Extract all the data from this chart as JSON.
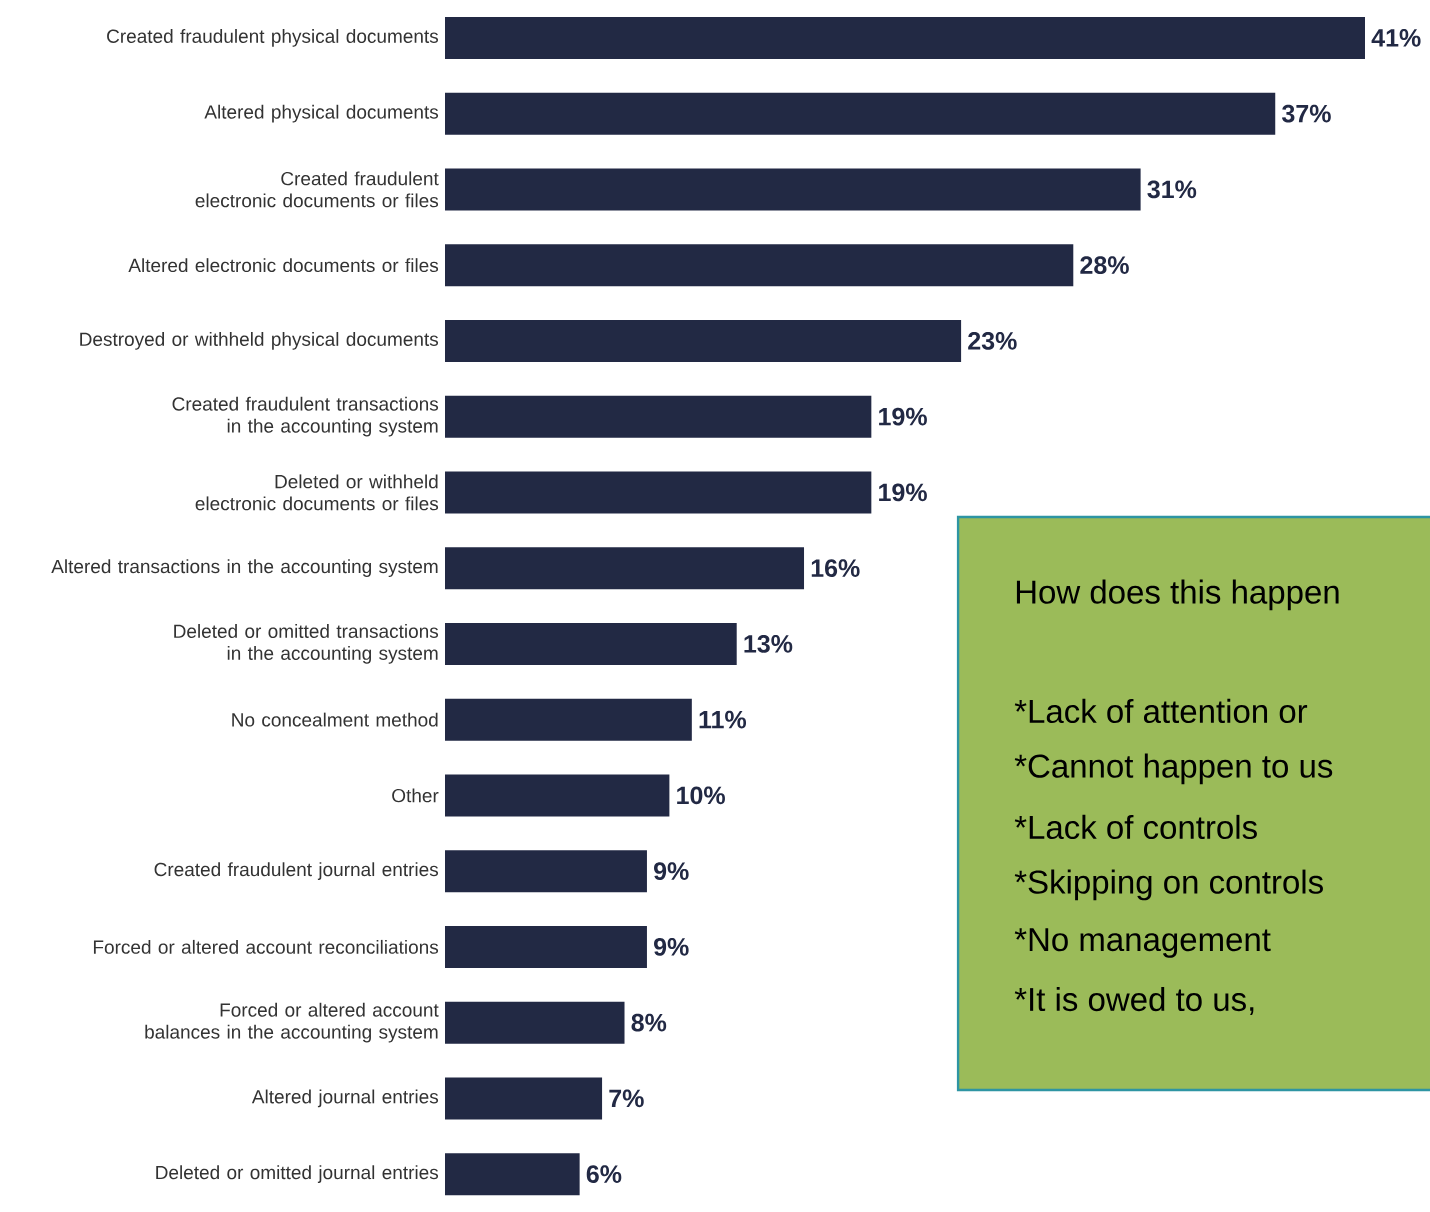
{
  "chart_data": {
    "type": "bar",
    "orientation": "horizontal",
    "color": "#222944",
    "categories": [
      "Created fraudulent physical documents",
      "Altered physical documents",
      "Created fraudulent electronic documents or files",
      "Altered electronic documents or files",
      "Destroyed or withheld physical documents",
      "Created fraudulent transactions in the accounting system",
      "Deleted or withheld electronic documents or files",
      "Altered transactions in the accounting system",
      "Deleted or omitted transactions in the accounting system",
      "No concealment method",
      "Other",
      "Created fraudulent journal entries",
      "Forced or altered account reconciliations",
      "Forced or altered account balances in the accounting system",
      "Altered journal entries",
      "Deleted or omitted journal entries"
    ],
    "values": [
      41,
      37,
      31,
      28,
      23,
      19,
      19,
      16,
      13,
      11,
      10,
      9,
      9,
      8,
      7,
      6
    ],
    "value_labels": [
      "41%",
      "37%",
      "31%",
      "28%",
      "23%",
      "19%",
      "19%",
      "16%",
      "13%",
      "11%",
      "10%",
      "9%",
      "9%",
      "8%",
      "7%",
      "6%"
    ],
    "annotations": [
      "How does this happen",
      "*Lack of attention or",
      "*Cannot happen to us",
      "*Lack of controls",
      "*Skipping on controls",
      "*No management",
      "*It is owed to us,"
    ]
  }
}
